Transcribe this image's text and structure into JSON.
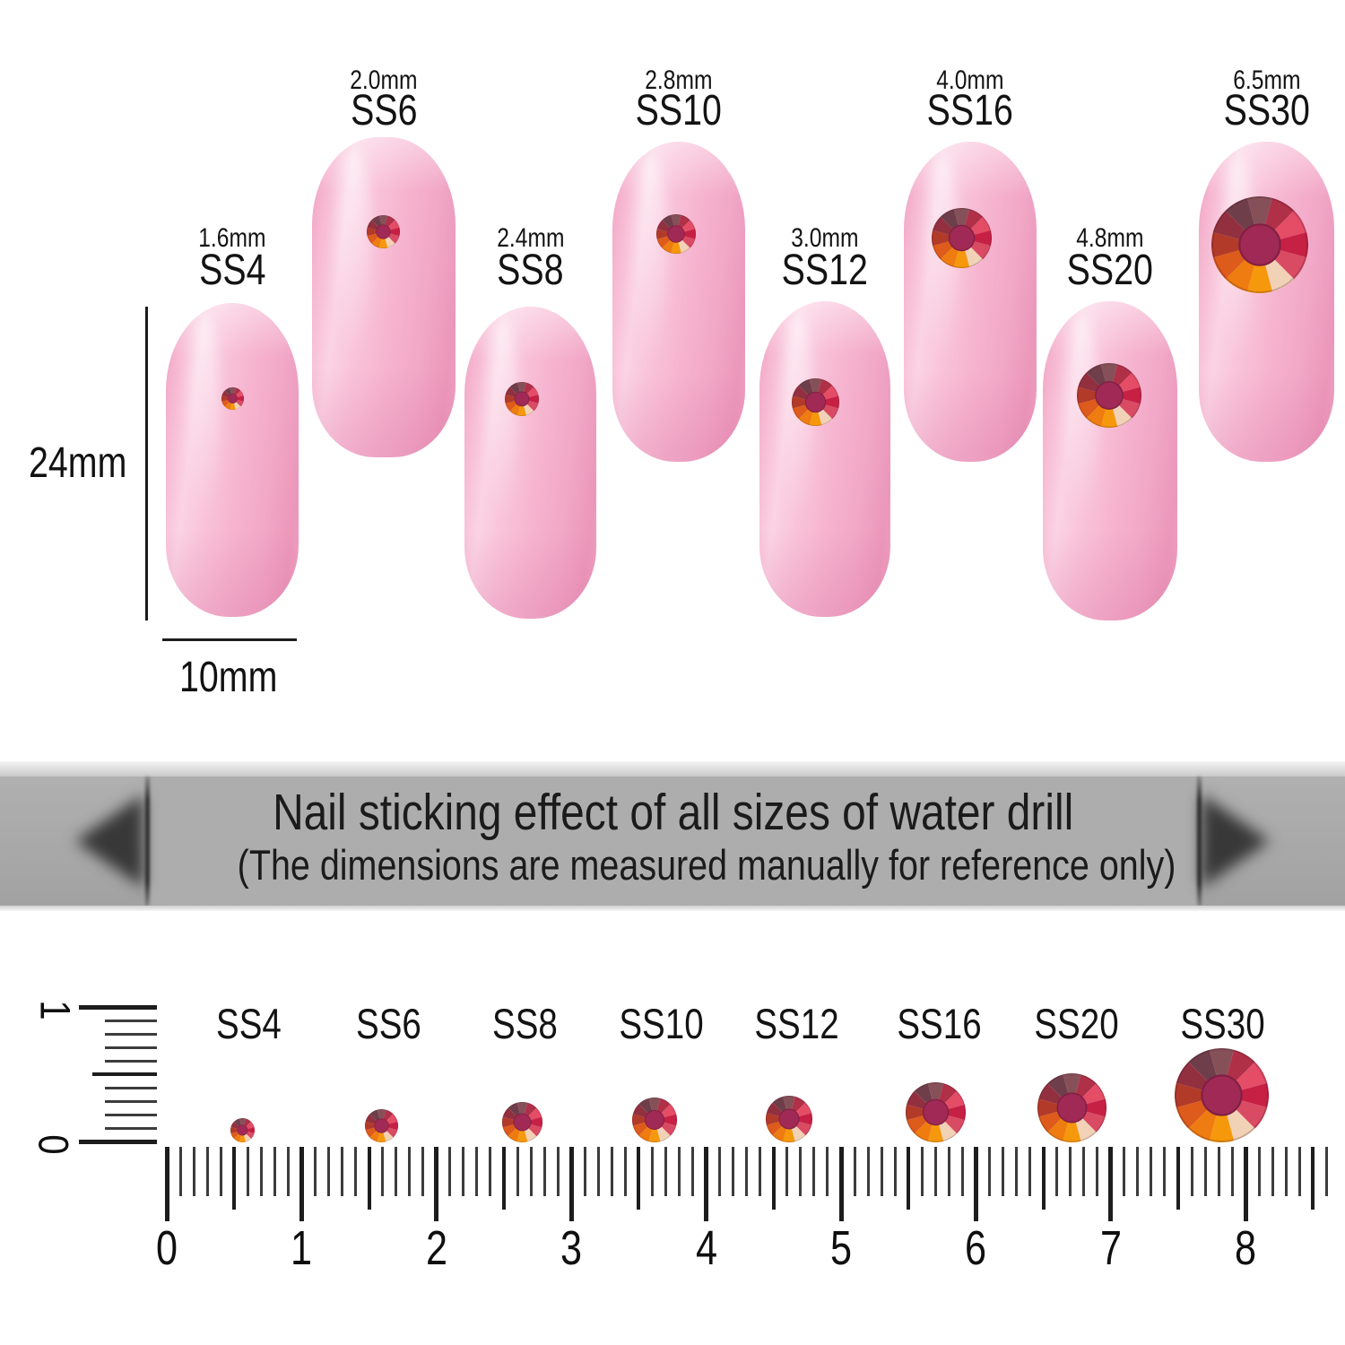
{
  "size_chart": {
    "height_label": "24mm",
    "width_label": "10mm",
    "nails": [
      {
        "ss": "SS4",
        "mm": "1.6mm"
      },
      {
        "ss": "SS6",
        "mm": "2.0mm"
      },
      {
        "ss": "SS8",
        "mm": "2.4mm"
      },
      {
        "ss": "SS10",
        "mm": "2.8mm"
      },
      {
        "ss": "SS12",
        "mm": "3.0mm"
      },
      {
        "ss": "SS16",
        "mm": "4.0mm"
      },
      {
        "ss": "SS20",
        "mm": "4.8mm"
      },
      {
        "ss": "SS30",
        "mm": "6.5mm"
      }
    ]
  },
  "banner": {
    "title": "Nail sticking effect of all sizes of water drill",
    "subtitle": "(The dimensions are measured manually for reference only)"
  },
  "ruler": {
    "numbers": [
      "0",
      "1",
      "2",
      "3",
      "4",
      "5",
      "6",
      "7",
      "8"
    ],
    "vertical_numbers": [
      "1",
      "0"
    ],
    "sizes": [
      {
        "label": "SS4"
      },
      {
        "label": "SS6"
      },
      {
        "label": "SS8"
      },
      {
        "label": "SS10"
      },
      {
        "label": "SS12"
      },
      {
        "label": "SS16"
      },
      {
        "label": "SS20"
      },
      {
        "label": "SS30"
      }
    ]
  },
  "colors": {
    "nail_pink": "#f7bcd4",
    "banner_gray": "#a6a6a6",
    "banner_panel_gray": "#adadad",
    "text_dark": "#161616",
    "stone_facets": [
      "#865058",
      "#b03048",
      "#e54c66",
      "#c62045",
      "#d94b63",
      "#f2d2b6",
      "#f6980b",
      "#ef7c10",
      "#dd5b1b",
      "#b23a28",
      "#93303f",
      "#6f3e4b"
    ],
    "stone_table": "#a02a55",
    "stone_table_rim": "#801f44"
  }
}
